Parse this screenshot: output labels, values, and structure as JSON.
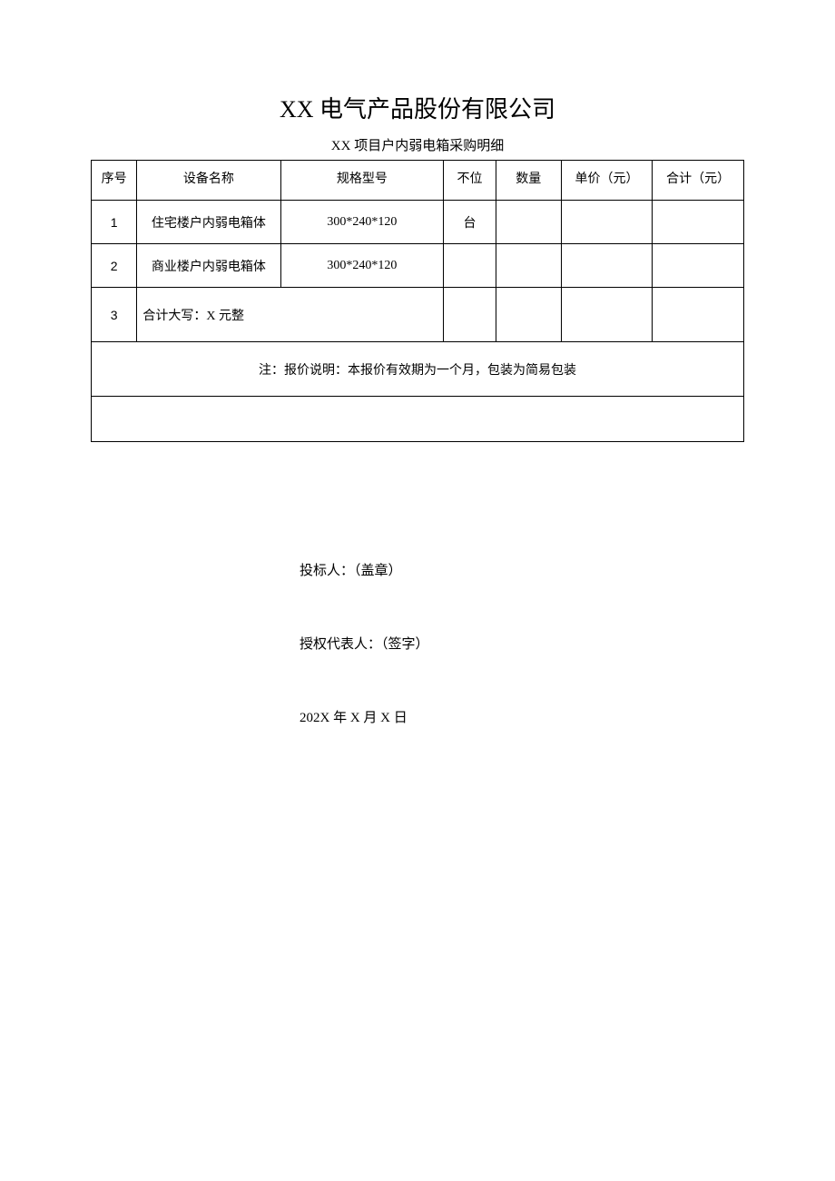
{
  "document": {
    "title": "XX 电气产品股份有限公司",
    "subtitle": "XX 项目户内弱电箱采购明细",
    "background_color": "#ffffff",
    "border_color": "#000000"
  },
  "table": {
    "headers": {
      "seq": "序号",
      "name": "设备名称",
      "spec": "规格型号",
      "unit": "不位",
      "qty": "数量",
      "price": "单价（元）",
      "total": "合计（元）"
    },
    "rows": [
      {
        "seq": "1",
        "name": "住宅楼户内弱电箱体",
        "spec": "300*240*120",
        "unit": "台",
        "qty": "",
        "price": "",
        "total": ""
      },
      {
        "seq": "2",
        "name": "商业楼户内弱电箱体",
        "spec": "300*240*120",
        "unit": "",
        "qty": "",
        "price": "",
        "total": ""
      }
    ],
    "summary": {
      "seq": "3",
      "text": "合计大写：X 元整"
    },
    "note": "注：报价说明：本报价有效期为一个月，包装为简易包装"
  },
  "signature": {
    "bidder": "投标人：（盖章）",
    "representative": "授权代表人：（签字）",
    "date": "202X 年 X 月 X 日"
  }
}
